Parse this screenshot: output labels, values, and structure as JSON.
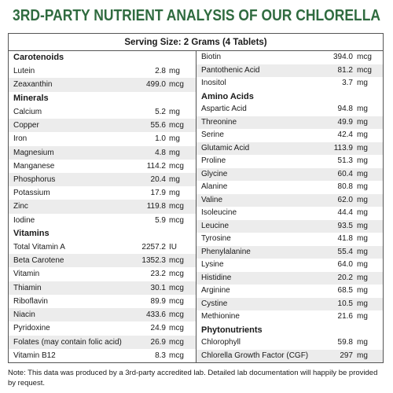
{
  "header": {
    "title": "3RD-PARTY NUTRIENT ANALYSIS OF OUR CHLORELLA",
    "serving_size": "Serving Size: 2 Grams (4 Tablets)"
  },
  "columns": [
    {
      "rows": [
        {
          "heading": "Carotenoids"
        },
        {
          "name": "Lutein",
          "amount": "2.8",
          "unit": "mg"
        },
        {
          "name": "Zeaxanthin",
          "amount": "499.0",
          "unit": "mcg"
        },
        {
          "heading": "Minerals"
        },
        {
          "name": "Calcium",
          "amount": "5.2",
          "unit": "mg"
        },
        {
          "name": "Copper",
          "amount": "55.6",
          "unit": "mcg"
        },
        {
          "name": "Iron",
          "amount": "1.0",
          "unit": "mg"
        },
        {
          "name": "Magnesium",
          "amount": "4.8",
          "unit": "mg"
        },
        {
          "name": "Manganese",
          "amount": "114.2",
          "unit": "mcg"
        },
        {
          "name": "Phosphorus",
          "amount": "20.4",
          "unit": "mg"
        },
        {
          "name": "Potassium",
          "amount": "17.9",
          "unit": "mg"
        },
        {
          "name": "Zinc",
          "amount": "119.8",
          "unit": "mcg"
        },
        {
          "name": "Iodine",
          "amount": "5.9",
          "unit": "mcg"
        },
        {
          "heading": "Vitamins"
        },
        {
          "name": "Total Vitamin A",
          "amount": "2257.2",
          "unit": "IU"
        },
        {
          "name": "Beta Carotene",
          "amount": "1352.3",
          "unit": "mcg"
        },
        {
          "name": "Vitamin",
          "amount": "23.2",
          "unit": "mcg"
        },
        {
          "name": "Thiamin",
          "amount": "30.1",
          "unit": "mcg"
        },
        {
          "name": "Riboflavin",
          "amount": "89.9",
          "unit": "mcg"
        },
        {
          "name": "Niacin",
          "amount": "433.6",
          "unit": "mcg"
        },
        {
          "name": "Pyridoxine",
          "amount": "24.9",
          "unit": "mcg"
        },
        {
          "name": "Folates (may contain folic acid)",
          "amount": "26.9",
          "unit": "mcg"
        },
        {
          "name": "Vitamin B12",
          "amount": "8.3",
          "unit": "mcg"
        }
      ]
    },
    {
      "rows": [
        {
          "name": "Biotin",
          "amount": "394.0",
          "unit": "mcg"
        },
        {
          "name": "Pantothenic Acid",
          "amount": "81.2",
          "unit": "mcg"
        },
        {
          "name": "Inositol",
          "amount": "3.7",
          "unit": "mg"
        },
        {
          "heading": "Amino Acids"
        },
        {
          "name": "Aspartic Acid",
          "amount": "94.8",
          "unit": "mg"
        },
        {
          "name": "Threonine",
          "amount": "49.9",
          "unit": "mg"
        },
        {
          "name": "Serine",
          "amount": "42.4",
          "unit": "mg"
        },
        {
          "name": "Glutamic Acid",
          "amount": "113.9",
          "unit": "mg"
        },
        {
          "name": "Proline",
          "amount": "51.3",
          "unit": "mg"
        },
        {
          "name": "Glycine",
          "amount": "60.4",
          "unit": "mg"
        },
        {
          "name": "Alanine",
          "amount": "80.8",
          "unit": "mg"
        },
        {
          "name": "Valine",
          "amount": "62.0",
          "unit": "mg"
        },
        {
          "name": "Isoleucine",
          "amount": "44.4",
          "unit": "mg"
        },
        {
          "name": "Leucine",
          "amount": "93.5",
          "unit": "mg"
        },
        {
          "name": "Tyrosine",
          "amount": "41.8",
          "unit": "mg"
        },
        {
          "name": "Phenylalanine",
          "amount": "55.4",
          "unit": "mg"
        },
        {
          "name": "Lysine",
          "amount": "64.0",
          "unit": "mg"
        },
        {
          "name": "Histidine",
          "amount": "20.2",
          "unit": "mg"
        },
        {
          "name": "Arginine",
          "amount": "68.5",
          "unit": "mg"
        },
        {
          "name": "Cystine",
          "amount": "10.5",
          "unit": "mg"
        },
        {
          "name": "Methionine",
          "amount": "21.6",
          "unit": "mg"
        },
        {
          "heading": "Phytonutrients"
        },
        {
          "name": "Chlorophyll",
          "amount": "59.8",
          "unit": "mg"
        },
        {
          "name": "Chlorella Growth Factor (CGF)",
          "amount": "297",
          "unit": "mg"
        }
      ]
    }
  ],
  "note": "Note: This data was produced by a 3rd-party accredited lab. Detailed lab documentation will happily be provided by request."
}
